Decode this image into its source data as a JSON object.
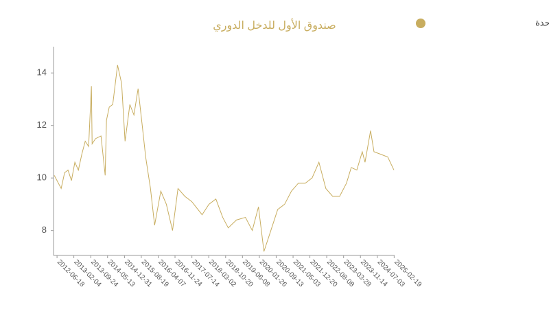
{
  "chart_data": {
    "type": "line",
    "title": "صندوق الأول للدخل الدوري",
    "legend": "top-right",
    "grid": false,
    "x": [
      "2012-05-11",
      "2012-08-14",
      "2012-09-30",
      "2012-11-16",
      "2013-01-02",
      "2013-02-18",
      "2013-04-07",
      "2013-05-24",
      "2013-07-10",
      "2013-08-26",
      "2013-10-03",
      "2013-10-13",
      "2013-11-29",
      "2014-02-12",
      "2014-04-10",
      "2014-04-28",
      "2014-06-05",
      "2014-07-23",
      "2014-09-27",
      "2014-11-22",
      "2015-01-08",
      "2015-03-15",
      "2015-05-10",
      "2015-07-06",
      "2015-09-01",
      "2015-10-18",
      "2015-12-23",
      "2016-02-18",
      "2016-05-13",
      "2016-07-28",
      "2016-10-21",
      "2017-01-04",
      "2017-04-09",
      "2017-07-12",
      "2017-12-01",
      "2018-03-05",
      "2018-06-08",
      "2018-09-10",
      "2018-11-25",
      "2019-03-18",
      "2019-07-19",
      "2019-10-21",
      "2020-01-14",
      "2020-03-29",
      "2020-07-02",
      "2020-10-04",
      "2021-01-07",
      "2021-04-11",
      "2021-07-14",
      "2021-10-17",
      "2022-01-19",
      "2022-04-23",
      "2022-07-27",
      "2022-10-29",
      "2023-02-01",
      "2023-05-06",
      "2023-07-11",
      "2023-09-25",
      "2023-12-09",
      "2024-01-16",
      "2024-04-01",
      "2024-05-18",
      "2024-08-21",
      "2024-11-23",
      "2025-02-16"
    ],
    "series": [
      {
        "name": "صافي قيمة الأصول للوحدة",
        "color": "#c8ad5f",
        "values": [
          10.1,
          9.6,
          10.2,
          10.3,
          9.9,
          10.6,
          10.3,
          10.9,
          11.4,
          11.2,
          13.5,
          11.3,
          11.5,
          11.6,
          10.1,
          12.2,
          12.7,
          12.8,
          14.3,
          13.6,
          11.4,
          12.8,
          12.4,
          13.4,
          12.0,
          10.8,
          9.6,
          8.2,
          9.5,
          9.0,
          8.0,
          9.6,
          9.3,
          9.1,
          8.6,
          9.0,
          9.2,
          8.5,
          8.1,
          8.4,
          8.5,
          8.0,
          8.9,
          7.2,
          8.0,
          8.8,
          9.0,
          9.5,
          9.8,
          9.8,
          10.0,
          10.6,
          9.6,
          9.3,
          9.3,
          9.8,
          10.4,
          10.3,
          11.0,
          10.6,
          11.8,
          11.0,
          10.9,
          10.8,
          10.3
        ]
      }
    ],
    "xlim": [
      "2012-05-01",
      "2025-02-25"
    ],
    "xticks": [
      "2012-06-18",
      "2013-02-04",
      "2013-09-24",
      "2014-05-13",
      "2014-12-31",
      "2015-08-19",
      "2016-04-07",
      "2016-11-24",
      "2017-07-14",
      "2018-03-02",
      "2018-10-20",
      "2019-06-08",
      "2020-01-26",
      "2020-09-13",
      "2021-05-03",
      "2021-12-20",
      "2022-08-08",
      "2023-03-28",
      "2023-11-14",
      "2024-07-03",
      "2025-02-19"
    ],
    "ylim": [
      7.05,
      15.0
    ],
    "yticks": [
      8,
      10,
      12,
      14
    ]
  }
}
